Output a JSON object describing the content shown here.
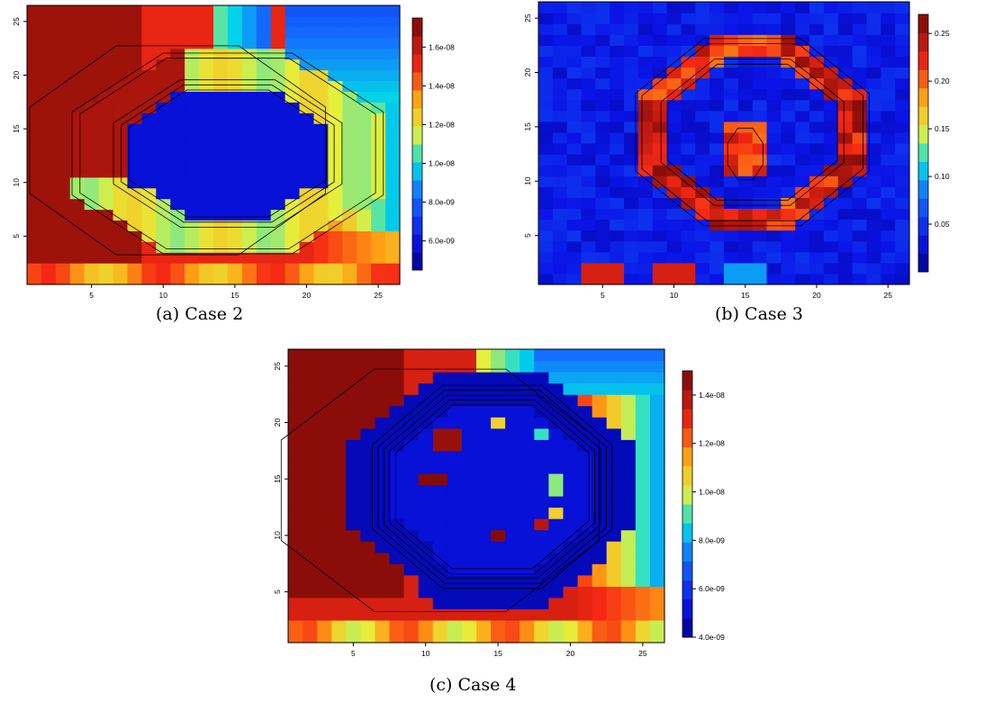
{
  "chart_data": [
    {
      "type": "heatmap",
      "caption": "(a) Case 2",
      "xlim": [
        0.5,
        26.5
      ],
      "ylim": [
        0.5,
        26.5
      ],
      "x_ticks": [
        "5",
        "10",
        "15",
        "20",
        "25"
      ],
      "y_ticks": [
        "5",
        "10",
        "15",
        "20",
        "25"
      ],
      "colorbar_ticks": [
        "6.0e-09",
        "8.0e-09",
        "1.0e-08",
        "1.2e-08",
        "1.4e-08",
        "1.6e-08"
      ],
      "colorbar_range": [
        4.5e-09,
        1.75e-08
      ],
      "contour_lines": true,
      "pattern": "ring-low-center",
      "colors": {
        "low": "#0a14c8",
        "mid": "#e8ef3a",
        "high": "#7a0a0a"
      }
    },
    {
      "type": "heatmap",
      "caption": "(b) Case 3",
      "xlim": [
        0.5,
        26.5
      ],
      "ylim": [
        0.5,
        26.5
      ],
      "x_ticks": [
        "5",
        "10",
        "15",
        "20",
        "25"
      ],
      "y_ticks": [
        "5",
        "10",
        "15",
        "20",
        "25"
      ],
      "colorbar_ticks": [
        "0.05",
        "0.10",
        "0.15",
        "0.20",
        "0.25"
      ],
      "colorbar_range": [
        0.0,
        0.27
      ],
      "contour_lines": true,
      "pattern": "ring-high-band",
      "colors": {
        "low": "#0a14c8",
        "mid": "#e8ef3a",
        "high": "#7a0a0a"
      }
    },
    {
      "type": "heatmap",
      "caption": "(c) Case 4",
      "xlim": [
        0.5,
        26.5
      ],
      "ylim": [
        0.5,
        26.5
      ],
      "x_ticks": [
        "5",
        "10",
        "15",
        "20",
        "25"
      ],
      "y_ticks": [
        "5",
        "10",
        "15",
        "20",
        "25"
      ],
      "colorbar_ticks": [
        "4.0e-09",
        "6.0e-09",
        "8.0e-09",
        "1.0e-08",
        "1.2e-08",
        "1.4e-08"
      ],
      "colorbar_range": [
        4e-09,
        1.5e-08
      ],
      "contour_lines": true,
      "pattern": "ring-low-center-spots",
      "colors": {
        "low": "#0a14c8",
        "mid": "#e8ef3a",
        "high": "#7a0a0a"
      }
    }
  ]
}
